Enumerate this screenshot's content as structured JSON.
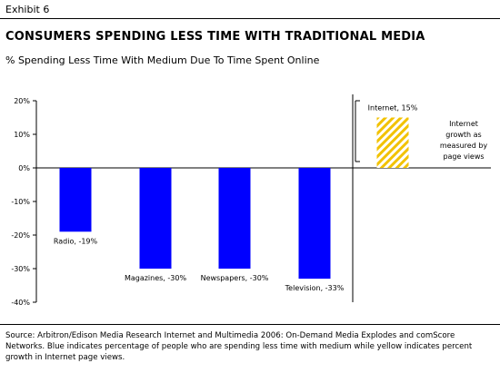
{
  "exhibit": "Exhibit 6",
  "title": "CONSUMERS SPENDING LESS TIME WITH TRADITIONAL MEDIA",
  "subtitle": "% Spending Less Time With Medium Due To Time Spent Online",
  "source": "Source: Arbitron/Edison Media Research Internet and Multimedia 2006: On-Demand Media Explodes and comScore Networks.  Blue indicates percentage of people who are spending less time with medium while yellow indicates percent growth in Internet page views.",
  "annotation": [
    "Internet",
    "growth as",
    "measured by",
    "page views"
  ],
  "colors": {
    "decline": "#0000ff",
    "growth": "#f2c200"
  },
  "chart_data": {
    "type": "bar",
    "title": "CONSUMERS SPENDING LESS TIME WITH TRADITIONAL MEDIA",
    "subtitle": "% Spending Less Time With Medium Due To Time Spent Online",
    "xlabel": "",
    "ylabel": "",
    "ylim": [
      -40,
      20
    ],
    "yticks": [
      20,
      10,
      0,
      -10,
      -20,
      -30,
      -40
    ],
    "ytick_labels": [
      "20%",
      "10%",
      "0%",
      "-10%",
      "-20%",
      "-30%",
      "-40%"
    ],
    "grid": false,
    "categories": [
      "Radio",
      "Magazines",
      "Newspapers",
      "Television",
      "Internet"
    ],
    "values": [
      -19,
      -30,
      -30,
      -33,
      15
    ],
    "data_labels": [
      "Radio, -19%",
      "Magazines, -30%",
      "Newspapers, -30%",
      "Television, -33%",
      "Internet, 15%"
    ],
    "fill_styles": [
      "solid",
      "solid",
      "solid",
      "solid",
      "hatched"
    ]
  }
}
